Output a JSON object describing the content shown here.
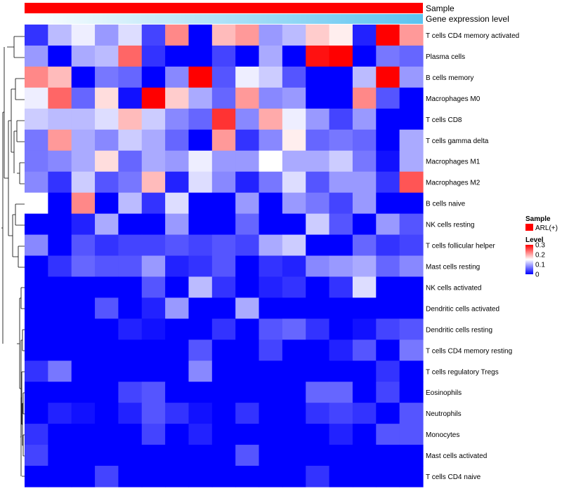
{
  "chart_data": {
    "type": "heatmap",
    "title": "",
    "annotation_tracks": [
      {
        "name": "Sample",
        "color": "#ff0000"
      },
      {
        "name": "Gene expression level",
        "gradient": [
          "#ffffff",
          "#5bc3f0"
        ]
      }
    ],
    "legend": {
      "position": "right",
      "sample_title": "Sample",
      "sample_items": [
        {
          "label": "ARL(+)",
          "color": "#ff0000"
        }
      ],
      "level_title": "Level",
      "level_ticks": [
        {
          "value": 0.3,
          "label": "0.3"
        },
        {
          "value": 0.2,
          "label": "0.2"
        },
        {
          "value": 0.1,
          "label": "0.1"
        },
        {
          "value": 0,
          "label": "0"
        }
      ]
    },
    "color_scale": {
      "min": 0,
      "max": 0.3,
      "low": "#0000ff",
      "mid": "#ffffff",
      "high": "#ff0000",
      "mid_value": 0.15
    },
    "row_labels": [
      "T cells CD4 memory activated",
      "Plasma cells",
      "B cells memory",
      "Macrophages M0",
      "T cells CD8",
      "T cells gamma delta",
      "Macrophages M1",
      "Macrophages M2",
      "B cells naive",
      "NK cells resting",
      "T cells follicular helper",
      "Mast cells resting",
      "NK cells activated",
      "Dendritic cells activated",
      "Dendritic cells resting",
      "T cells CD4 memory resting",
      "T cells regulatory  Tregs",
      "Eosinophils",
      "Neutrophils",
      "Monocytes",
      "Mast cells activated",
      "T cells CD4 naive"
    ],
    "values": [
      [
        0.03,
        0.11,
        0.14,
        0.09,
        0.13,
        0.04,
        0.22,
        0.0,
        0.19,
        0.21,
        0.09,
        0.11,
        0.18,
        0.16,
        0.02,
        0.3,
        0.21
      ],
      [
        0.09,
        0.0,
        0.1,
        0.11,
        0.24,
        0.03,
        0.0,
        0.0,
        0.04,
        0.0,
        0.1,
        0.0,
        0.29,
        0.3,
        0.0,
        0.07,
        0.06
      ],
      [
        0.22,
        0.19,
        0.0,
        0.07,
        0.06,
        0.0,
        0.08,
        0.3,
        0.05,
        0.14,
        0.12,
        0.05,
        0.0,
        0.0,
        0.11,
        0.3,
        0.09
      ],
      [
        0.14,
        0.24,
        0.06,
        0.17,
        0.01,
        0.3,
        0.18,
        0.1,
        0.06,
        0.21,
        0.08,
        0.09,
        0.0,
        0.0,
        0.22,
        0.05,
        0.0
      ],
      [
        0.12,
        0.11,
        0.11,
        0.13,
        0.19,
        0.12,
        0.08,
        0.06,
        0.27,
        0.08,
        0.2,
        0.14,
        0.09,
        0.04,
        0.09,
        0.0,
        0.0
      ],
      [
        0.07,
        0.21,
        0.1,
        0.08,
        0.12,
        0.1,
        0.06,
        0.0,
        0.21,
        0.03,
        0.08,
        0.16,
        0.06,
        0.07,
        0.06,
        0.0,
        0.1
      ],
      [
        0.07,
        0.08,
        0.1,
        0.17,
        0.06,
        0.1,
        0.09,
        0.14,
        0.09,
        0.09,
        0.15,
        0.1,
        0.1,
        0.12,
        0.07,
        0.01,
        0.1
      ],
      [
        0.08,
        0.03,
        0.12,
        0.05,
        0.07,
        0.19,
        0.02,
        0.13,
        0.08,
        0.02,
        0.07,
        0.13,
        0.05,
        0.09,
        0.09,
        0.03,
        0.25
      ],
      [
        0.15,
        0.0,
        0.22,
        0.0,
        0.11,
        0.03,
        0.13,
        0.0,
        0.0,
        0.09,
        0.0,
        0.09,
        0.07,
        0.04,
        0.09,
        0.0,
        0.0
      ],
      [
        0.0,
        0.0,
        0.02,
        0.1,
        0.0,
        0.0,
        0.09,
        0.0,
        0.0,
        0.06,
        0.0,
        0.0,
        0.12,
        0.05,
        0.0,
        0.09,
        0.05
      ],
      [
        0.08,
        0.0,
        0.05,
        0.03,
        0.04,
        0.04,
        0.05,
        0.04,
        0.05,
        0.04,
        0.1,
        0.12,
        0.0,
        0.0,
        0.06,
        0.03,
        0.04
      ],
      [
        0.0,
        0.03,
        0.06,
        0.05,
        0.05,
        0.09,
        0.02,
        0.03,
        0.05,
        0.0,
        0.03,
        0.02,
        0.08,
        0.09,
        0.1,
        0.06,
        0.08
      ],
      [
        0.0,
        0.0,
        0.0,
        0.0,
        0.0,
        0.05,
        0.0,
        0.11,
        0.03,
        0.0,
        0.02,
        0.03,
        0.0,
        0.03,
        0.13,
        0.0,
        0.0
      ],
      [
        0.0,
        0.0,
        0.0,
        0.05,
        0.0,
        0.02,
        0.09,
        0.0,
        0.0,
        0.1,
        0.0,
        0.0,
        0.0,
        0.0,
        0.0,
        0.0,
        0.0
      ],
      [
        0.0,
        0.0,
        0.0,
        0.0,
        0.02,
        0.01,
        0.0,
        0.0,
        0.03,
        0.0,
        0.05,
        0.06,
        0.03,
        0.0,
        0.01,
        0.04,
        0.05
      ],
      [
        0.0,
        0.0,
        0.0,
        0.0,
        0.0,
        0.0,
        0.0,
        0.05,
        0.0,
        0.0,
        0.04,
        0.0,
        0.0,
        0.02,
        0.05,
        0.0,
        0.07
      ],
      [
        0.03,
        0.07,
        0.0,
        0.0,
        0.0,
        0.0,
        0.0,
        0.08,
        0.0,
        0.0,
        0.0,
        0.0,
        0.0,
        0.0,
        0.0,
        0.03,
        0.0
      ],
      [
        0.0,
        0.0,
        0.0,
        0.0,
        0.04,
        0.05,
        0.0,
        0.0,
        0.0,
        0.0,
        0.0,
        0.0,
        0.06,
        0.06,
        0.0,
        0.04,
        0.0
      ],
      [
        0.0,
        0.02,
        0.01,
        0.0,
        0.02,
        0.05,
        0.03,
        0.01,
        0.0,
        0.03,
        0.0,
        0.0,
        0.03,
        0.04,
        0.03,
        0.0,
        0.05
      ],
      [
        0.03,
        0.0,
        0.0,
        0.0,
        0.0,
        0.04,
        0.0,
        0.02,
        0.0,
        0.0,
        0.0,
        0.0,
        0.0,
        0.02,
        0.0,
        0.05,
        0.05
      ],
      [
        0.04,
        0.0,
        0.0,
        0.0,
        0.0,
        0.0,
        0.0,
        0.0,
        0.0,
        0.05,
        0.0,
        0.0,
        0.0,
        0.0,
        0.0,
        0.0,
        0.0
      ],
      [
        0.0,
        0.0,
        0.0,
        0.04,
        0.0,
        0.0,
        0.0,
        0.0,
        0.0,
        0.0,
        0.0,
        0.0,
        0.03,
        0.0,
        0.0,
        0.0,
        0.0
      ]
    ]
  }
}
